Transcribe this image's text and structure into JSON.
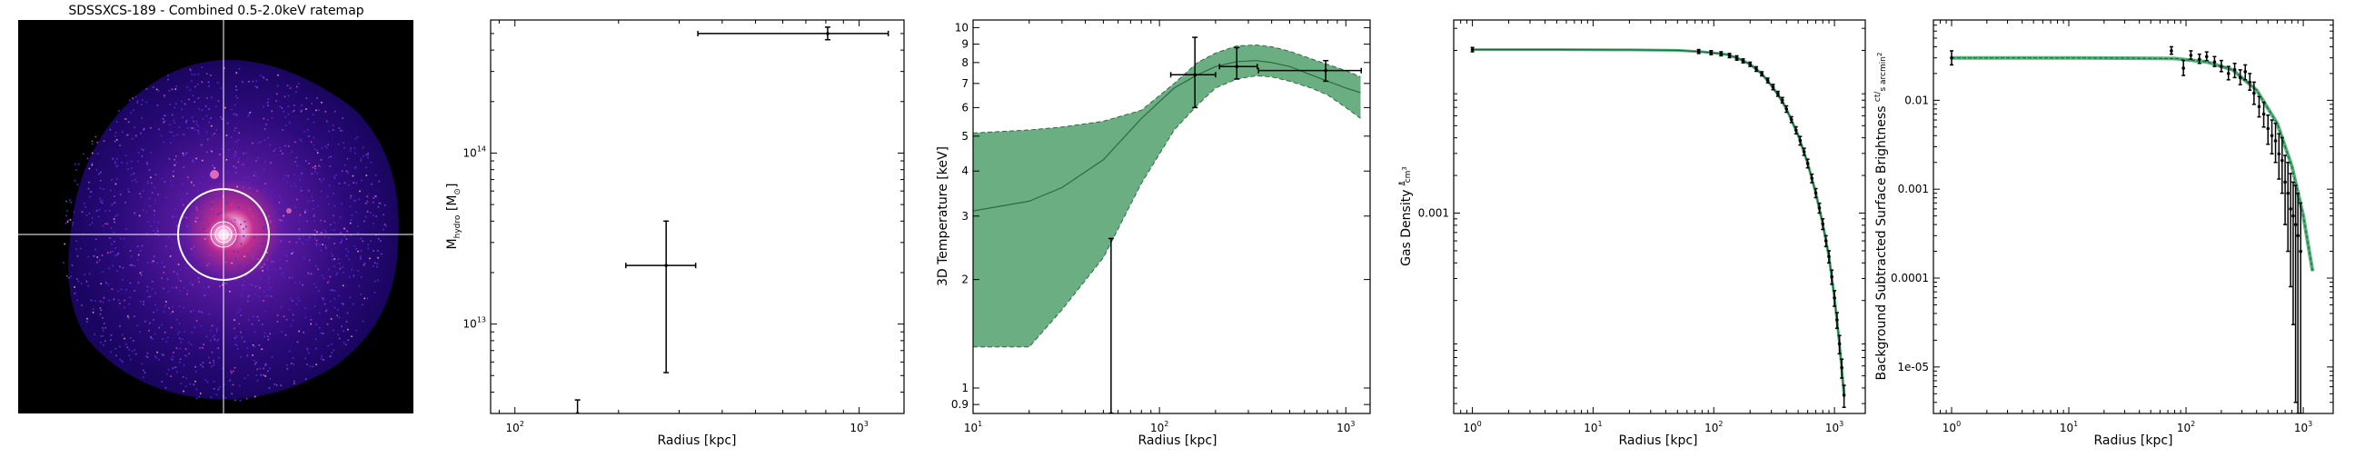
{
  "colors": {
    "band": "#5aa574",
    "band_line": "#2e6b43",
    "model_line": "#2ca25f",
    "data": "#000000"
  },
  "chart_data": [
    {
      "id": "ratemap",
      "type": "heatmap",
      "title": "SDSSXCS-189 - Combined 0.5-2.0keV ratemap",
      "colormap": "magma-like (black → purple → pink → white)",
      "crosshair": true,
      "overlays": [
        "white circle at cluster centre",
        "concentric annuli at bright core"
      ]
    },
    {
      "id": "hydro-mass",
      "type": "scatter",
      "xlabel": "Radius [kpc]",
      "ylabel": "M",
      "ylabel_sub": "hydro",
      "ylabel_unit": " [M",
      "ylabel_unit_sub": "⊙",
      "ylabel_unit_end": "]",
      "xscale": "log",
      "yscale": "log",
      "xlim": [
        85,
        1350
      ],
      "ylim": [
        3000000000000.0,
        600000000000000.0
      ],
      "xticks": [
        {
          "v": 100,
          "base": "10",
          "exp": "2"
        },
        {
          "v": 1000,
          "base": "10",
          "exp": "3"
        }
      ],
      "yticks": [
        {
          "v": 10000000000000.0,
          "base": "10",
          "exp": "13"
        },
        {
          "v": 100000000000000.0,
          "base": "10",
          "exp": "14"
        }
      ],
      "points": [
        {
          "x": 152,
          "y": 3000000000000.0,
          "xlo": 152,
          "xhi": 152,
          "ylo": 2900000000000.0,
          "yhi": 3600000000000.0
        },
        {
          "x": 275,
          "y": 22000000000000.0,
          "xlo": 210,
          "xhi": 335,
          "ylo": 5200000000000.0,
          "yhi": 40000000000000.0
        },
        {
          "x": 810,
          "y": 500000000000000.0,
          "xlo": 340,
          "xhi": 1215,
          "ylo": 460000000000000.0,
          "yhi": 545000000000000.0
        }
      ]
    },
    {
      "id": "temperature",
      "type": "area",
      "xlabel": "Radius [kpc]",
      "ylabel": "3D Temperature [keV]",
      "xscale": "log",
      "yscale": "log",
      "xlim": [
        10,
        1350
      ],
      "ylim": [
        0.85,
        10.5
      ],
      "xticks": [
        {
          "v": 10,
          "base": "10",
          "exp": "1"
        },
        {
          "v": 100,
          "base": "10",
          "exp": "2"
        },
        {
          "v": 1000,
          "base": "10",
          "exp": "3"
        }
      ],
      "yticks": [
        {
          "v": 0.9,
          "label": "0.9"
        },
        {
          "v": 1,
          "label": "1"
        },
        {
          "v": 2,
          "label": "2"
        },
        {
          "v": 3,
          "label": "3"
        },
        {
          "v": 4,
          "label": "4"
        },
        {
          "v": 5,
          "label": "5"
        },
        {
          "v": 6,
          "label": "6"
        },
        {
          "v": 7,
          "label": "7"
        },
        {
          "v": 8,
          "label": "8"
        },
        {
          "v": 9,
          "label": "9"
        },
        {
          "v": 10,
          "label": "10"
        }
      ],
      "model": {
        "x": [
          10,
          20,
          30,
          50,
          80,
          120,
          160,
          200,
          260,
          330,
          400,
          500,
          650,
          800,
          1000,
          1200
        ],
        "y": [
          3.1,
          3.3,
          3.6,
          4.3,
          5.6,
          6.8,
          7.4,
          7.8,
          8.05,
          8.1,
          8.0,
          7.8,
          7.4,
          7.1,
          6.8,
          6.6
        ],
        "lower": [
          1.3,
          1.3,
          1.65,
          2.3,
          3.7,
          5.2,
          6.1,
          6.8,
          7.2,
          7.35,
          7.3,
          7.1,
          6.8,
          6.5,
          6.0,
          5.6
        ],
        "upper": [
          5.1,
          5.2,
          5.3,
          5.5,
          5.9,
          7.0,
          8.0,
          8.5,
          8.9,
          8.95,
          8.85,
          8.6,
          8.2,
          7.9,
          7.6,
          7.3
        ]
      },
      "points": [
        {
          "x": 55,
          "y": 0.85,
          "xlo": 55,
          "xhi": 55,
          "ylo": 0.85,
          "yhi": 2.6
        },
        {
          "x": 155,
          "y": 7.4,
          "xlo": 115,
          "xhi": 200,
          "ylo": 6.0,
          "yhi": 9.4
        },
        {
          "x": 260,
          "y": 7.8,
          "xlo": 210,
          "xhi": 335,
          "ylo": 7.2,
          "yhi": 8.8
        },
        {
          "x": 780,
          "y": 7.6,
          "xlo": 340,
          "xhi": 1210,
          "ylo": 7.1,
          "yhi": 8.1
        }
      ]
    },
    {
      "id": "gas-density",
      "type": "line",
      "xlabel": "Radius [kpc]",
      "ylabel": "Gas Density ",
      "ylabel_frac_num": "1",
      "ylabel_frac_den": "cm",
      "ylabel_frac_den_sup": "3",
      "xscale": "log",
      "yscale": "log",
      "xlim": [
        0.7,
        1800
      ],
      "ylim": [
        2.5e-05,
        0.035
      ],
      "xticks": [
        {
          "v": 1,
          "base": "10",
          "exp": "0"
        },
        {
          "v": 10,
          "base": "10",
          "exp": "1"
        },
        {
          "v": 100,
          "base": "10",
          "exp": "2"
        },
        {
          "v": 1000,
          "base": "10",
          "exp": "3"
        }
      ],
      "yticks": [
        {
          "v": 0.001,
          "label": "0.001"
        }
      ],
      "model": {
        "x": [
          1,
          5,
          20,
          50,
          80,
          100,
          130,
          160,
          200,
          250,
          300,
          350,
          400,
          500,
          600,
          700,
          800,
          900,
          1000,
          1100,
          1200
        ],
        "y": [
          0.0203,
          0.0203,
          0.0202,
          0.02,
          0.0195,
          0.0191,
          0.0185,
          0.0172,
          0.0155,
          0.013,
          0.0105,
          0.0085,
          0.0068,
          0.0042,
          0.0025,
          0.00145,
          0.00082,
          0.00045,
          0.00021,
          9e-05,
          3.5e-05
        ]
      },
      "points": [
        {
          "x": 1,
          "y": 0.0203,
          "err": 0.0008
        },
        {
          "x": 75,
          "y": 0.0196,
          "err": 0.0007
        },
        {
          "x": 95,
          "y": 0.0192,
          "err": 0.0007
        },
        {
          "x": 115,
          "y": 0.0188,
          "err": 0.0007
        },
        {
          "x": 135,
          "y": 0.0182,
          "err": 0.0007
        },
        {
          "x": 155,
          "y": 0.0174,
          "err": 0.0007
        },
        {
          "x": 175,
          "y": 0.0165,
          "err": 0.0006
        },
        {
          "x": 200,
          "y": 0.0155,
          "err": 0.0006
        },
        {
          "x": 225,
          "y": 0.0142,
          "err": 0.0006
        },
        {
          "x": 250,
          "y": 0.013,
          "err": 0.0005
        },
        {
          "x": 280,
          "y": 0.0115,
          "err": 0.0005
        },
        {
          "x": 310,
          "y": 0.0102,
          "err": 0.0005
        },
        {
          "x": 340,
          "y": 0.009,
          "err": 0.0004
        },
        {
          "x": 370,
          "y": 0.008,
          "err": 0.0004
        },
        {
          "x": 400,
          "y": 0.0068,
          "err": 0.0004
        },
        {
          "x": 440,
          "y": 0.0056,
          "err": 0.0003
        },
        {
          "x": 480,
          "y": 0.0046,
          "err": 0.0003
        },
        {
          "x": 520,
          "y": 0.0038,
          "err": 0.0003
        },
        {
          "x": 560,
          "y": 0.0031,
          "err": 0.0002
        },
        {
          "x": 600,
          "y": 0.0025,
          "err": 0.0002
        },
        {
          "x": 650,
          "y": 0.0019,
          "err": 0.00015
        },
        {
          "x": 700,
          "y": 0.00145,
          "err": 0.00012
        },
        {
          "x": 750,
          "y": 0.0011,
          "err": 0.0001
        },
        {
          "x": 800,
          "y": 0.00082,
          "err": 8e-05
        },
        {
          "x": 850,
          "y": 0.0006,
          "err": 6e-05
        },
        {
          "x": 900,
          "y": 0.00045,
          "err": 5e-05
        },
        {
          "x": 950,
          "y": 0.00031,
          "err": 4e-05
        },
        {
          "x": 1000,
          "y": 0.00021,
          "err": 3e-05
        },
        {
          "x": 1050,
          "y": 0.00014,
          "err": 2e-05
        },
        {
          "x": 1100,
          "y": 9e-05,
          "err": 1.5e-05
        },
        {
          "x": 1150,
          "y": 5.8e-05,
          "err": 1e-05
        },
        {
          "x": 1200,
          "y": 3.5e-05,
          "err": 7e-06
        }
      ]
    },
    {
      "id": "surface-brightness",
      "type": "scatter",
      "xlabel": "Radius [kpc]",
      "ylabel": "Background Subtracted Surface Brightness ",
      "ylabel_frac_num": "ct",
      "ylabel_frac_den": "s arcmin",
      "ylabel_frac_den_sup": "2",
      "xscale": "log",
      "yscale": "log",
      "xlim": [
        0.7,
        1800
      ],
      "ylim": [
        3e-06,
        0.08
      ],
      "xticks": [
        {
          "v": 1,
          "base": "10",
          "exp": "0"
        },
        {
          "v": 10,
          "base": "10",
          "exp": "1"
        },
        {
          "v": 100,
          "base": "10",
          "exp": "2"
        },
        {
          "v": 1000,
          "base": "10",
          "exp": "3"
        }
      ],
      "yticks": [
        {
          "v": 1e-05,
          "label": "1e-05"
        },
        {
          "v": 0.0001,
          "label": "0.0001"
        },
        {
          "v": 0.001,
          "label": "0.001"
        },
        {
          "v": 0.01,
          "label": "0.01"
        }
      ],
      "model": {
        "x": [
          1,
          10,
          30,
          80,
          150,
          250,
          400,
          600,
          800,
          1000,
          1200
        ],
        "y": [
          0.03,
          0.03,
          0.0298,
          0.0295,
          0.027,
          0.022,
          0.013,
          0.0055,
          0.0018,
          0.0005,
          0.00012
        ]
      },
      "points": [
        {
          "x": 1,
          "y": 0.03,
          "ylo": 0.025,
          "yhi": 0.036
        },
        {
          "x": 75,
          "y": 0.036,
          "ylo": 0.033,
          "yhi": 0.04
        },
        {
          "x": 95,
          "y": 0.023,
          "ylo": 0.019,
          "yhi": 0.028
        },
        {
          "x": 110,
          "y": 0.032,
          "ylo": 0.029,
          "yhi": 0.036
        },
        {
          "x": 130,
          "y": 0.029,
          "ylo": 0.026,
          "yhi": 0.033
        },
        {
          "x": 150,
          "y": 0.031,
          "ylo": 0.028,
          "yhi": 0.035
        },
        {
          "x": 175,
          "y": 0.027,
          "ylo": 0.024,
          "yhi": 0.031
        },
        {
          "x": 200,
          "y": 0.024,
          "ylo": 0.021,
          "yhi": 0.028
        },
        {
          "x": 230,
          "y": 0.02,
          "ylo": 0.017,
          "yhi": 0.024
        },
        {
          "x": 260,
          "y": 0.022,
          "ylo": 0.018,
          "yhi": 0.026
        },
        {
          "x": 290,
          "y": 0.018,
          "ylo": 0.015,
          "yhi": 0.022
        },
        {
          "x": 320,
          "y": 0.021,
          "ylo": 0.017,
          "yhi": 0.025
        },
        {
          "x": 350,
          "y": 0.016,
          "ylo": 0.013,
          "yhi": 0.02
        },
        {
          "x": 380,
          "y": 0.012,
          "ylo": 0.009,
          "yhi": 0.016
        },
        {
          "x": 420,
          "y": 0.0085,
          "ylo": 0.0065,
          "yhi": 0.011
        },
        {
          "x": 460,
          "y": 0.007,
          "ylo": 0.005,
          "yhi": 0.0095
        },
        {
          "x": 500,
          "y": 0.0048,
          "ylo": 0.0032,
          "yhi": 0.0068
        },
        {
          "x": 540,
          "y": 0.004,
          "ylo": 0.0025,
          "yhi": 0.006
        },
        {
          "x": 580,
          "y": 0.0035,
          "ylo": 0.002,
          "yhi": 0.0055
        },
        {
          "x": 620,
          "y": 0.0025,
          "ylo": 0.0013,
          "yhi": 0.0042
        },
        {
          "x": 660,
          "y": 0.0021,
          "ylo": 0.0009,
          "yhi": 0.0038
        },
        {
          "x": 700,
          "y": 0.0012,
          "ylo": 0.0004,
          "yhi": 0.0024
        },
        {
          "x": 740,
          "y": 0.0009,
          "ylo": 0.0002,
          "yhi": 0.002
        },
        {
          "x": 780,
          "y": 0.0006,
          "ylo": 8e-05,
          "yhi": 0.0015
        },
        {
          "x": 820,
          "y": 0.0005,
          "ylo": 3e-05,
          "yhi": 0.0012
        },
        {
          "x": 860,
          "y": 0.0004,
          "ylo": 4e-06,
          "yhi": 0.0011
        },
        {
          "x": 900,
          "y": 0.0003,
          "ylo": 3e-06,
          "yhi": 0.0009
        },
        {
          "x": 950,
          "y": 0.0002,
          "ylo": 3e-06,
          "yhi": 0.0007
        }
      ]
    }
  ]
}
